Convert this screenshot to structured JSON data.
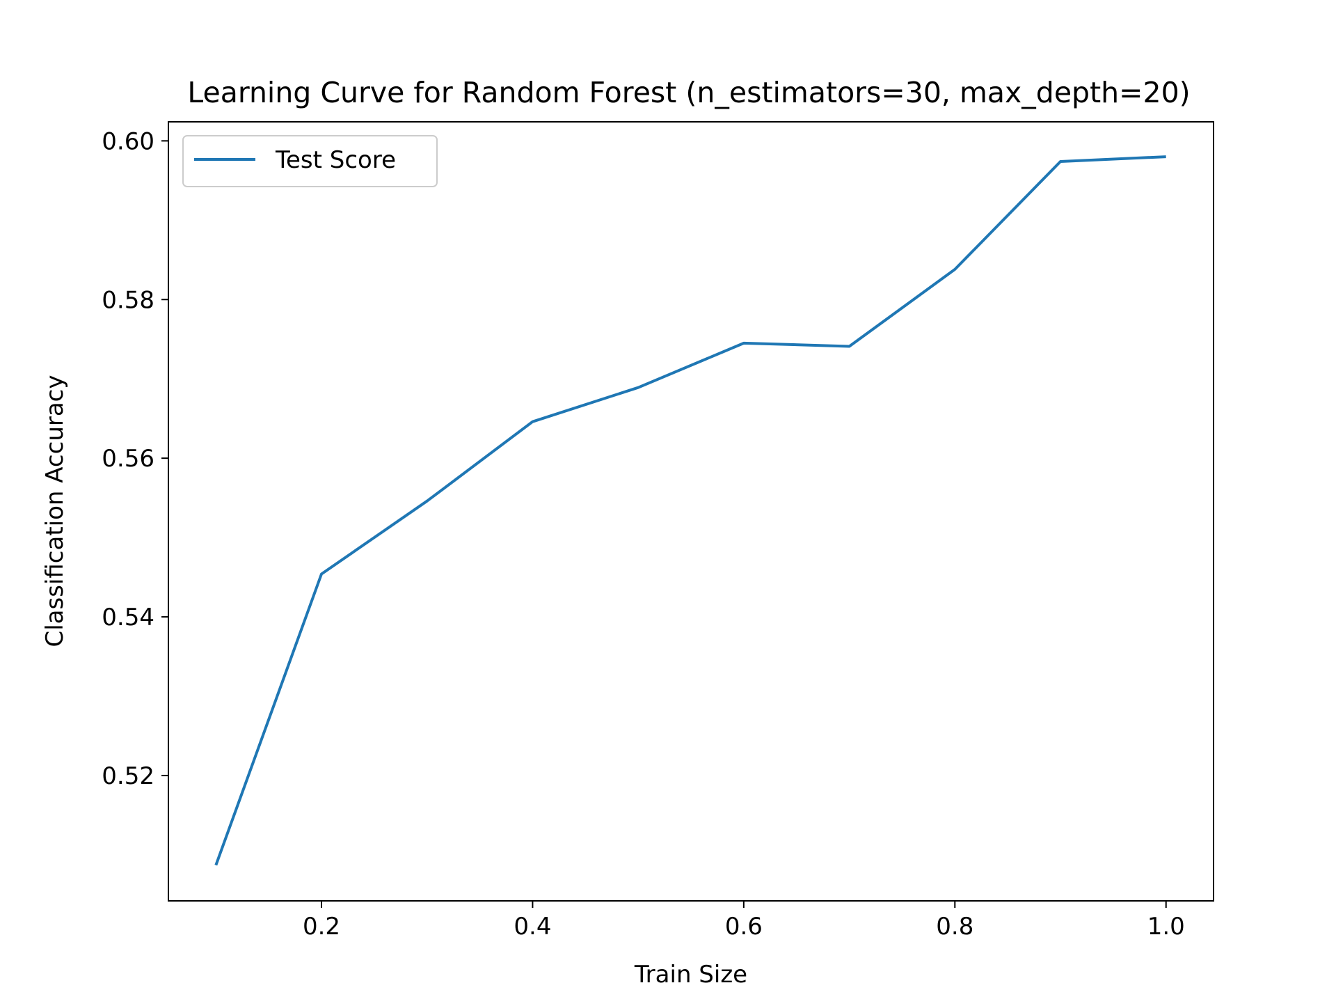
{
  "chart_data": {
    "type": "line",
    "title": "Learning Curve for Random Forest (n_estimators=30, max_depth=20)",
    "xlabel": "Train Size",
    "ylabel": "Classification Accuracy",
    "xlim": [
      0.055,
      1.045
    ],
    "ylim": [
      0.5042,
      0.6024
    ],
    "xticks": [
      0.2,
      0.4,
      0.6,
      0.8,
      1.0
    ],
    "xtick_labels": [
      "0.2",
      "0.4",
      "0.6",
      "0.8",
      "1.0"
    ],
    "yticks": [
      0.52,
      0.54,
      0.56,
      0.58,
      0.6
    ],
    "ytick_labels": [
      "0.52",
      "0.54",
      "0.56",
      "0.58",
      "0.60"
    ],
    "grid": false,
    "legend_position": "upper-left",
    "x": [
      0.1,
      0.2,
      0.3,
      0.4,
      0.5,
      0.6,
      0.7,
      0.8,
      0.9,
      1.0
    ],
    "series": [
      {
        "name": "Test Score",
        "color": "#1f77b4",
        "values": [
          0.5087,
          0.5454,
          0.5546,
          0.5646,
          0.5689,
          0.5745,
          0.5741,
          0.5838,
          0.5974,
          0.598
        ]
      }
    ]
  }
}
